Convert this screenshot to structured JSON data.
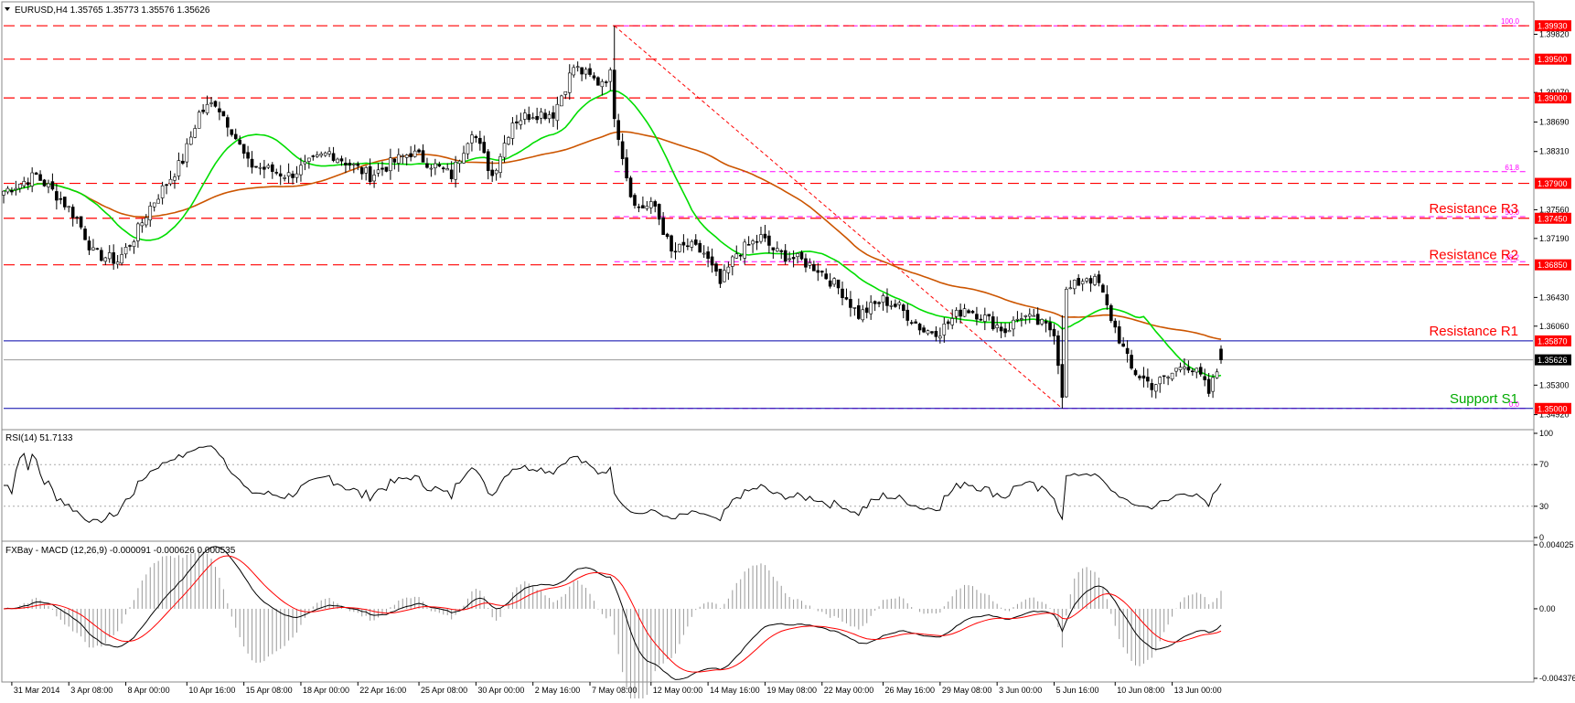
{
  "symbol_header": "EURUSD,H4  1.35765 1.35773 1.35576 1.35626",
  "rsi_header": "RSI(14) 51.7133",
  "macd_header": "FXBay - MACD (12,26,9) -0.000091 -0.000626 0.000535",
  "colors": {
    "bull": "#000000",
    "bear": "#000000",
    "sma_fast": "#00dd00",
    "sma_slow": "#cc5500",
    "level_line": "#ff0000",
    "fib_line": "#ff00ff",
    "price_tag_bg": "#ff0000",
    "support_line": "#0000aa",
    "current_tag_bg": "#000000",
    "label_red": "#ff0000",
    "label_green": "#00aa00"
  },
  "chart_data": [
    {
      "type": "candlestick",
      "title": "EURUSD,H4",
      "ylim": [
        1.3475,
        1.4005
      ],
      "y_ticks": [
        "1.39820",
        "1.39070",
        "1.38690",
        "1.38310",
        "1.37560",
        "1.37190",
        "1.36430",
        "1.36060",
        "1.35300",
        "1.34920"
      ],
      "x_ticks": [
        "31 Mar 2014",
        "3 Apr 08:00",
        "8 Apr 00:00",
        "10 Apr 16:00",
        "15 Apr 08:00",
        "18 Apr 00:00",
        "22 Apr 16:00",
        "25 Apr 08:00",
        "30 Apr 00:00",
        "2 May 16:00",
        "7 May 08:00",
        "12 May 00:00",
        "14 May 16:00",
        "19 May 08:00",
        "22 May 00:00",
        "26 May 16:00",
        "29 May 08:00",
        "3 Jun 00:00",
        "5 Jun 16:00",
        "10 Jun 08:00",
        "13 Jun 00:00"
      ],
      "anchors": [
        {
          "i": 0,
          "c": 1.378
        },
        {
          "i": 8,
          "c": 1.38
        },
        {
          "i": 14,
          "c": 1.377
        },
        {
          "i": 18,
          "c": 1.3745
        },
        {
          "i": 22,
          "c": 1.37
        },
        {
          "i": 28,
          "c": 1.369
        },
        {
          "i": 32,
          "c": 1.372
        },
        {
          "i": 36,
          "c": 1.376
        },
        {
          "i": 40,
          "c": 1.379
        },
        {
          "i": 44,
          "c": 1.382
        },
        {
          "i": 48,
          "c": 1.388
        },
        {
          "i": 52,
          "c": 1.3895
        },
        {
          "i": 56,
          "c": 1.386
        },
        {
          "i": 60,
          "c": 1.3815
        },
        {
          "i": 70,
          "c": 1.38
        },
        {
          "i": 80,
          "c": 1.383
        },
        {
          "i": 90,
          "c": 1.38
        },
        {
          "i": 100,
          "c": 1.383
        },
        {
          "i": 110,
          "c": 1.38
        },
        {
          "i": 115,
          "c": 1.386
        },
        {
          "i": 120,
          "c": 1.38
        },
        {
          "i": 125,
          "c": 1.387
        },
        {
          "i": 130,
          "c": 1.388
        },
        {
          "i": 135,
          "c": 1.388
        },
        {
          "i": 140,
          "c": 1.394
        },
        {
          "i": 146,
          "c": 1.392
        },
        {
          "i": 149,
          "c": 1.393
        },
        {
          "i": 150,
          "c": 1.388
        },
        {
          "i": 153,
          "c": 1.38
        },
        {
          "i": 155,
          "c": 1.376
        },
        {
          "i": 160,
          "c": 1.376
        },
        {
          "i": 164,
          "c": 1.37
        },
        {
          "i": 168,
          "c": 1.371
        },
        {
          "i": 172,
          "c": 1.37
        },
        {
          "i": 176,
          "c": 1.366
        },
        {
          "i": 180,
          "c": 1.37
        },
        {
          "i": 186,
          "c": 1.372
        },
        {
          "i": 190,
          "c": 1.37
        },
        {
          "i": 196,
          "c": 1.369
        },
        {
          "i": 200,
          "c": 1.368
        },
        {
          "i": 206,
          "c": 1.365
        },
        {
          "i": 210,
          "c": 1.362
        },
        {
          "i": 216,
          "c": 1.364
        },
        {
          "i": 220,
          "c": 1.363
        },
        {
          "i": 226,
          "c": 1.36
        },
        {
          "i": 230,
          "c": 1.36
        },
        {
          "i": 236,
          "c": 1.363
        },
        {
          "i": 240,
          "c": 1.362
        },
        {
          "i": 246,
          "c": 1.36
        },
        {
          "i": 250,
          "c": 1.362
        },
        {
          "i": 254,
          "c": 1.361
        },
        {
          "i": 258,
          "c": 1.36
        },
        {
          "i": 260,
          "c": 1.352
        },
        {
          "i": 261,
          "c": 1.365
        },
        {
          "i": 266,
          "c": 1.367
        },
        {
          "i": 269,
          "c": 1.366
        },
        {
          "i": 271,
          "c": 1.363
        },
        {
          "i": 274,
          "c": 1.359
        },
        {
          "i": 277,
          "c": 1.355
        },
        {
          "i": 282,
          "c": 1.353
        },
        {
          "i": 286,
          "c": 1.354
        },
        {
          "i": 290,
          "c": 1.356
        },
        {
          "i": 294,
          "c": 1.354
        },
        {
          "i": 296,
          "c": 1.352
        },
        {
          "i": 299,
          "c": 1.3562
        }
      ],
      "n_bars": 300,
      "horizontal_levels": [
        {
          "price": 1.3993,
          "tag": "1.39930",
          "style": "dashed-red"
        },
        {
          "price": 1.395,
          "tag": "1.39500",
          "style": "dashed-red"
        },
        {
          "price": 1.39,
          "tag": "1.39000",
          "style": "dashed-red"
        },
        {
          "price": 1.379,
          "tag": "1.37900",
          "style": "dashed-red"
        },
        {
          "price": 1.3745,
          "tag": "1.37450",
          "style": "dashed-red",
          "label": "Resistance R3"
        },
        {
          "price": 1.3685,
          "tag": "1.36850",
          "style": "dashed-red",
          "label": "Resistance R2"
        },
        {
          "price": 1.3587,
          "tag": "1.35870",
          "style": "solid-blue",
          "label": "Resistance R1"
        },
        {
          "price": 1.35,
          "tag": "1.35000",
          "style": "solid-blue",
          "label": "Support S1"
        }
      ],
      "current_price": {
        "price": 1.35626,
        "tag": "1.35626"
      },
      "fib_levels": [
        {
          "price": 1.3993,
          "label": "100.0"
        },
        {
          "price": 1.3805,
          "label": "61.8"
        },
        {
          "price": 1.3747,
          "label": "50.0"
        },
        {
          "price": 1.3689,
          "label": "38.2"
        },
        {
          "price": 1.35,
          "label": "0.0"
        }
      ],
      "fib_trend": {
        "from_bar": 150,
        "from_price": 1.3993,
        "to_bar": 260,
        "to_price": 1.35
      }
    },
    {
      "type": "line",
      "title": "RSI(14) 51.7133",
      "ylim": [
        0,
        100
      ],
      "y_ticks": [
        "100",
        "70",
        "30",
        "0"
      ],
      "levels": [
        70,
        30
      ]
    },
    {
      "type": "macd",
      "title": "FXBay - MACD (12,26,9)",
      "y_ticks": [
        "0.004025",
        "0.00",
        "-0.004376"
      ]
    }
  ]
}
